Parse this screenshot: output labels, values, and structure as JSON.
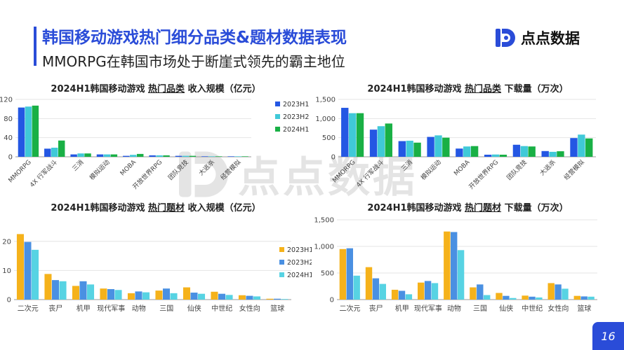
{
  "header": {
    "title": "韩国移动游戏热门细分品类&题材数据表现",
    "subtitle": "MMORPG在韩国市场处于断崖式领先的霸主地位",
    "logo_text": "点点数据",
    "watermark_text": "点点数据",
    "accent_color": "#2a4cd8"
  },
  "page_number": "16",
  "chart_data": [
    {
      "type": "bar",
      "title_prefix": "2024H1韩国移动游戏 ",
      "title_emph": "热门品类",
      "title_suffix": " 收入规模（亿元）",
      "categories": [
        "MMORPG",
        "4X 行军战斗",
        "三消",
        "模拟运动",
        "MOBA",
        "开放世界RPG",
        "团队竞技",
        "大逃杀",
        "经营模拟"
      ],
      "series": [
        {
          "name": "2023H1",
          "color": "#2457e3",
          "values": [
            103,
            17,
            5,
            5,
            2,
            3,
            2,
            1,
            1
          ]
        },
        {
          "name": "2023H2",
          "color": "#40c9d8",
          "values": [
            105,
            19,
            7,
            5,
            4,
            3,
            2,
            1,
            1
          ]
        },
        {
          "name": "2024H1",
          "color": "#19b045",
          "values": [
            107,
            34,
            7,
            5,
            6,
            3,
            2,
            1,
            1
          ]
        }
      ],
      "ylim": [
        0,
        120
      ],
      "yticks": [
        0,
        40,
        80,
        120
      ],
      "legend_position": "right",
      "rotate_labels": true
    },
    {
      "type": "bar",
      "title_prefix": "2024H1韩国移动游戏 ",
      "title_emph": "热门品类",
      "title_suffix": " 下载量（万次）",
      "categories": [
        "MMORPG",
        "4X 行军战斗",
        "三消",
        "模拟运动",
        "MOBA",
        "开放世界RPG",
        "团队竞技",
        "大逃杀",
        "经营模拟"
      ],
      "series": [
        {
          "name": "2023H1",
          "color": "#2457e3",
          "values": [
            1280,
            710,
            410,
            520,
            215,
            55,
            315,
            150,
            490
          ]
        },
        {
          "name": "2023H2",
          "color": "#40c9d8",
          "values": [
            1140,
            800,
            420,
            560,
            270,
            60,
            280,
            130,
            580
          ]
        },
        {
          "name": "2024H1",
          "color": "#19b045",
          "values": [
            1140,
            870,
            370,
            500,
            280,
            55,
            270,
            145,
            480
          ]
        }
      ],
      "ylim": [
        0,
        1500
      ],
      "yticks": [
        0,
        500,
        1000,
        1500
      ],
      "ytick_labels": [
        "0",
        "500",
        "1,000",
        "1,500"
      ],
      "rotate_labels": true
    },
    {
      "type": "bar",
      "title_prefix": "2024H1韩国移动游戏 ",
      "title_emph": "热门题材",
      "title_suffix": " 收入规模（亿元）",
      "categories": [
        "二次元",
        "丧尸",
        "机甲",
        "现代军事",
        "动物",
        "三国",
        "仙侠",
        "中世纪",
        "女性向",
        "篮球"
      ],
      "series": [
        {
          "name": "2023H1",
          "color": "#f5b21b",
          "values": [
            22.5,
            8.8,
            4.7,
            3.8,
            2.2,
            3.1,
            4.2,
            2.7,
            1.5,
            0.3
          ]
        },
        {
          "name": "2023H2",
          "color": "#4a90e2",
          "values": [
            19.8,
            6.7,
            6.3,
            3.6,
            2.8,
            3.8,
            2.4,
            2.0,
            1.3,
            0.3
          ]
        },
        {
          "name": "2024H1",
          "color": "#57d3e3",
          "values": [
            17.1,
            6.3,
            5.2,
            3.3,
            2.5,
            2.2,
            2.0,
            1.6,
            1.1,
            0.2
          ]
        }
      ],
      "ylim": [
        0,
        25
      ],
      "yticks": [
        0,
        10,
        20
      ],
      "legend_position": "right",
      "rotate_labels": false
    },
    {
      "type": "bar",
      "title_prefix": "2024H1韩国移动游戏 ",
      "title_emph": "热门题材",
      "title_suffix": " 下载量（万次）",
      "categories": [
        "二次元",
        "丧尸",
        "机甲",
        "现代军事",
        "动物",
        "三国",
        "仙侠",
        "中世纪",
        "女性向",
        "篮球"
      ],
      "series": [
        {
          "name": "2023H1",
          "color": "#f5b21b",
          "values": [
            950,
            610,
            185,
            320,
            1280,
            230,
            125,
            75,
            310,
            70
          ]
        },
        {
          "name": "2023H2",
          "color": "#4a90e2",
          "values": [
            965,
            400,
            165,
            350,
            1270,
            285,
            70,
            55,
            285,
            60
          ]
        },
        {
          "name": "2024H1",
          "color": "#57d3e3",
          "values": [
            450,
            295,
            100,
            310,
            930,
            85,
            30,
            40,
            205,
            55
          ]
        }
      ],
      "ylim": [
        0,
        1500
      ],
      "yticks": [
        0,
        500,
        1000,
        1500
      ],
      "ytick_labels": [
        "0",
        "500",
        "1,000",
        "1,500"
      ],
      "rotate_labels": false
    }
  ]
}
